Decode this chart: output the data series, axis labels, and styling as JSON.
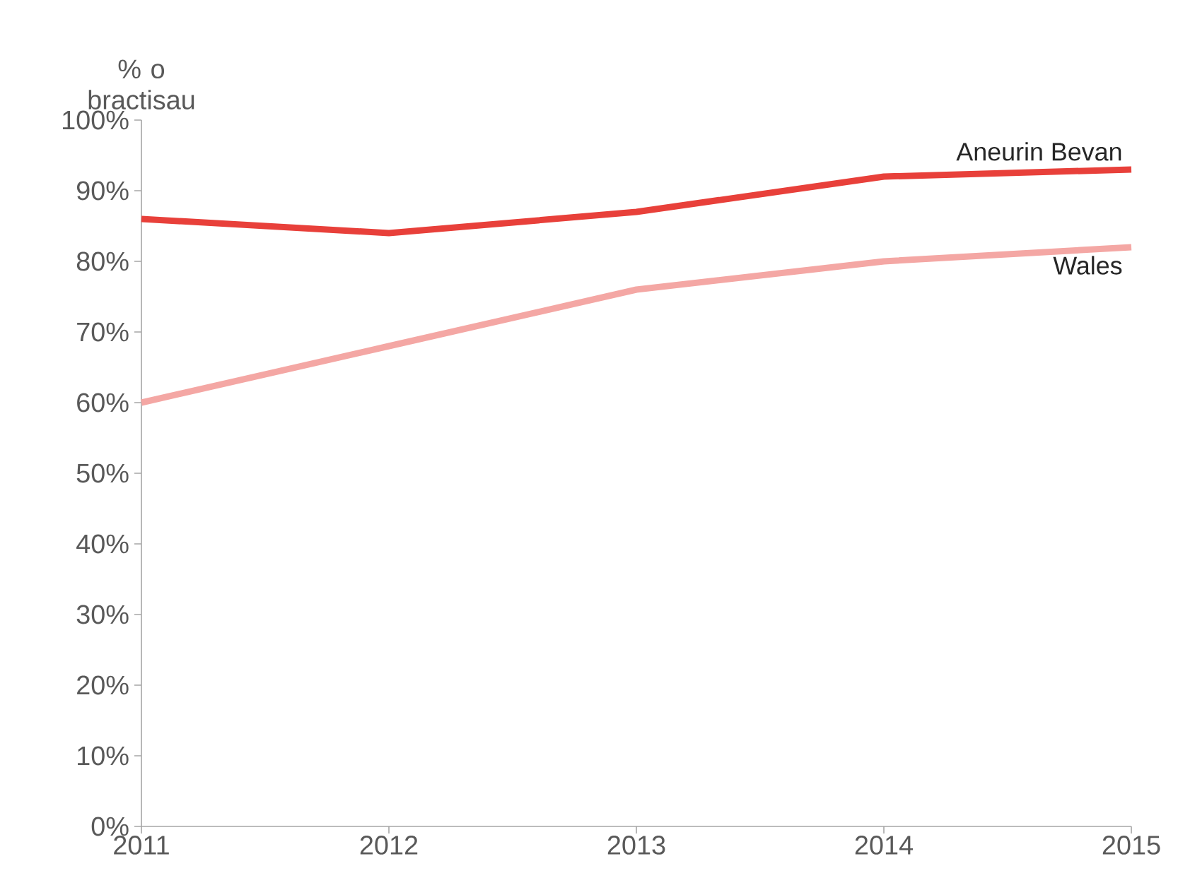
{
  "chart_data": {
    "type": "line",
    "ylabel": "% o bractisau",
    "x": [
      2011,
      2012,
      2013,
      2014,
      2015
    ],
    "series": [
      {
        "name": "Aneurin Bevan",
        "color": "#e8403a",
        "values": [
          86,
          84,
          87,
          92,
          93
        ]
      },
      {
        "name": "Wales",
        "color": "#f4a7a4",
        "values": [
          60,
          68,
          76,
          80,
          82
        ]
      }
    ],
    "xlim": [
      2011,
      2015
    ],
    "xticks": [
      2011,
      2012,
      2013,
      2014,
      2015
    ],
    "ylim": [
      0,
      100
    ],
    "yticks": [
      {
        "value": 0,
        "label": "0%"
      },
      {
        "value": 10,
        "label": "10%"
      },
      {
        "value": 20,
        "label": "20%"
      },
      {
        "value": 30,
        "label": "30%"
      },
      {
        "value": 40,
        "label": "40%"
      },
      {
        "value": 50,
        "label": "50%"
      },
      {
        "value": 60,
        "label": "60%"
      },
      {
        "value": 70,
        "label": "70%"
      },
      {
        "value": 80,
        "label": "80%"
      },
      {
        "value": 90,
        "label": "90%"
      },
      {
        "value": 100,
        "label": "100%"
      }
    ],
    "grid": false,
    "marker": "none",
    "line_style": "solid"
  }
}
